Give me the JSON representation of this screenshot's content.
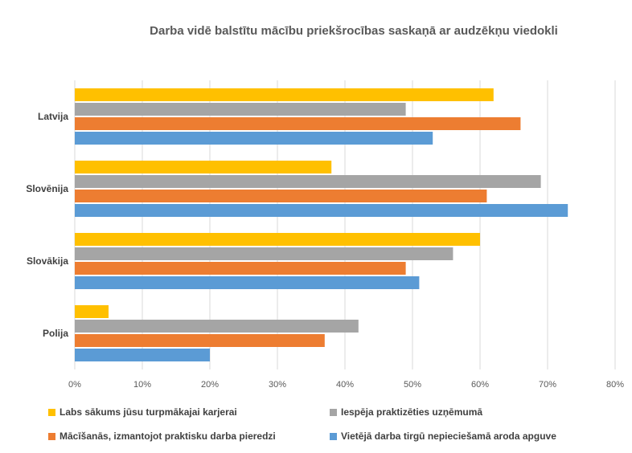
{
  "chart_data": {
    "type": "bar",
    "orientation": "horizontal",
    "title": "Darba vidē balstītu mācību priekšrocības saskaņā ar audzēkņu viedokli",
    "categories": [
      "Latvija",
      "Slovēnija",
      "Slovākija",
      "Polija"
    ],
    "series": [
      {
        "name": "Labs sākums jūsu turpmākajai karjerai",
        "color": "#FFC000",
        "values": [
          62,
          38,
          60,
          5
        ]
      },
      {
        "name": "Iespēja praktizēties uzņēmumā",
        "color": "#A5A5A5",
        "values": [
          49,
          69,
          56,
          42
        ]
      },
      {
        "name": "Mācīšanās, izmantojot praktisku darba pieredzi",
        "color": "#ED7D31",
        "values": [
          66,
          61,
          49,
          37
        ]
      },
      {
        "name": "Vietējā darba tirgū nepieciešamā aroda apguve",
        "color": "#5B9BD5",
        "values": [
          53,
          73,
          51,
          20
        ]
      }
    ],
    "xlim": [
      0,
      80
    ],
    "ticks": [
      "0%",
      "10%",
      "20%",
      "30%",
      "40%",
      "50%",
      "60%",
      "70%",
      "80%"
    ],
    "grid": true,
    "legend_position": "bottom"
  }
}
